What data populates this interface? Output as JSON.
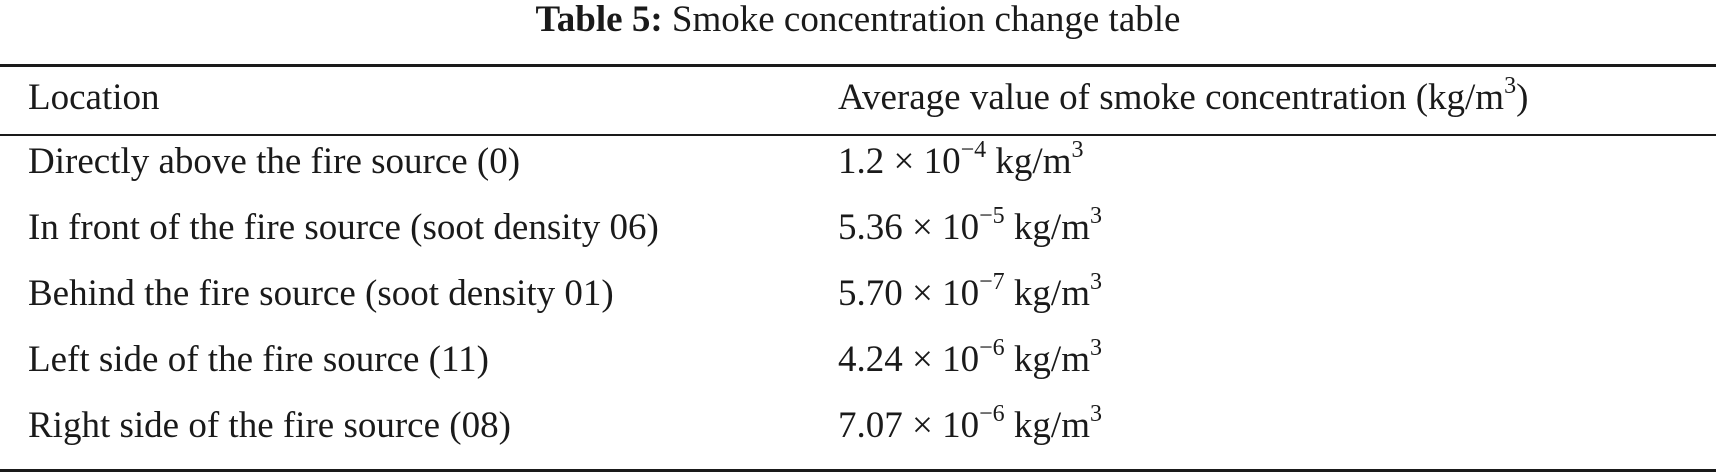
{
  "caption": {
    "label": "Table 5:",
    "title": "Smoke concentration change table"
  },
  "header": {
    "location": "Location",
    "value_text": "Average value of smoke concentration (kg/m",
    "value_sup": "3",
    "value_close": ")"
  },
  "rows": [
    {
      "location": "Directly above the fire source (0)",
      "mantissa": "1.2 × 10",
      "exponent": "−4",
      "unit": "kg/m",
      "unit_exp": "3"
    },
    {
      "location": "In front of the fire source (soot density 06)",
      "mantissa": "5.36 × 10",
      "exponent": "−5",
      "unit": "kg/m",
      "unit_exp": "3"
    },
    {
      "location": "Behind the fire source (soot density 01)",
      "mantissa": "5.70 × 10",
      "exponent": "−7",
      "unit": "kg/m",
      "unit_exp": "3"
    },
    {
      "location": "Left side of the fire source (11)",
      "mantissa": "4.24 × 10",
      "exponent": "−6",
      "unit": "kg/m",
      "unit_exp": "3"
    },
    {
      "location": "Right side of the fire source (08)",
      "mantissa": "7.07 × 10",
      "exponent": "−6",
      "unit": "kg/m",
      "unit_exp": "3"
    }
  ]
}
